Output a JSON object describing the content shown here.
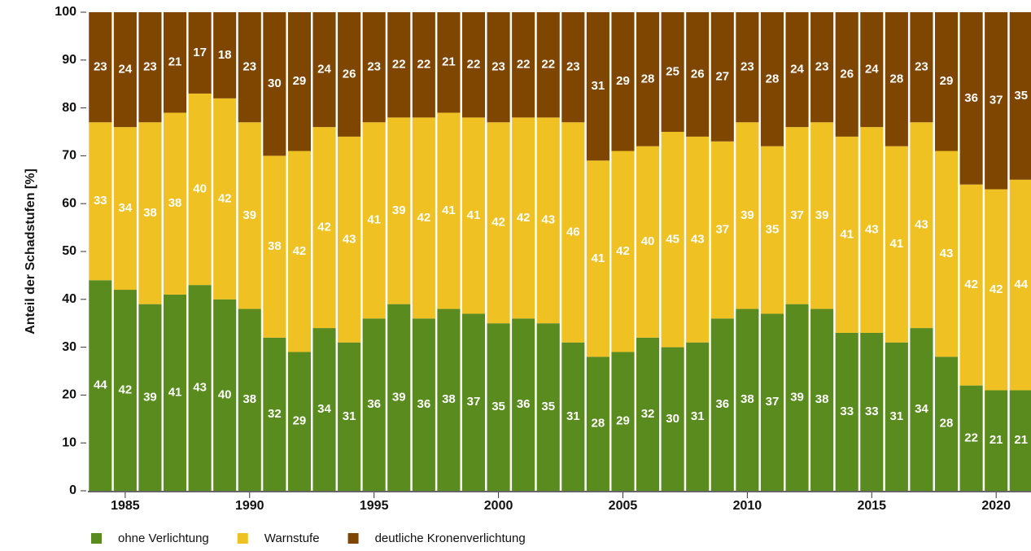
{
  "chart_data": {
    "type": "bar",
    "stacked": true,
    "y_label": "Anteil der Schadstufen [%]",
    "x": [
      1984,
      1985,
      1986,
      1987,
      1988,
      1989,
      1990,
      1991,
      1992,
      1993,
      1994,
      1995,
      1996,
      1997,
      1998,
      1999,
      2000,
      2001,
      2002,
      2003,
      2004,
      2005,
      2006,
      2007,
      2008,
      2009,
      2010,
      2011,
      2012,
      2013,
      2014,
      2015,
      2016,
      2017,
      2018,
      2019,
      2020,
      2021
    ],
    "series": [
      {
        "name": "ohne Verlichtung",
        "color": "#5a8b1e",
        "values": [
          44,
          42,
          39,
          41,
          43,
          40,
          38,
          32,
          29,
          34,
          31,
          36,
          39,
          36,
          38,
          37,
          35,
          36,
          35,
          31,
          28,
          29,
          32,
          30,
          31,
          36,
          38,
          37,
          39,
          38,
          33,
          33,
          31,
          34,
          28,
          22,
          21,
          21
        ]
      },
      {
        "name": "Warnstufe",
        "color": "#efc123",
        "values": [
          33,
          34,
          38,
          38,
          40,
          42,
          39,
          38,
          42,
          42,
          43,
          41,
          39,
          42,
          41,
          41,
          42,
          42,
          43,
          46,
          41,
          42,
          40,
          45,
          43,
          37,
          39,
          35,
          37,
          39,
          41,
          43,
          41,
          43,
          43,
          42,
          42,
          44
        ]
      },
      {
        "name": "deutliche Kronenverlichtung",
        "color": "#7f4602",
        "values": [
          23,
          24,
          23,
          21,
          17,
          18,
          23,
          30,
          29,
          24,
          26,
          23,
          22,
          22,
          21,
          22,
          23,
          22,
          22,
          23,
          31,
          29,
          28,
          25,
          26,
          27,
          23,
          28,
          24,
          23,
          26,
          24,
          28,
          23,
          29,
          36,
          37,
          35
        ]
      }
    ],
    "xlim": [
      1983.5,
      2021.4
    ],
    "xticks": [
      1985,
      1990,
      1995,
      2000,
      2005,
      2010,
      2015,
      2020
    ],
    "ylim": [
      0,
      100
    ],
    "yticks": [
      0,
      10,
      20,
      30,
      40,
      50,
      60,
      70,
      80,
      90,
      100
    ]
  }
}
